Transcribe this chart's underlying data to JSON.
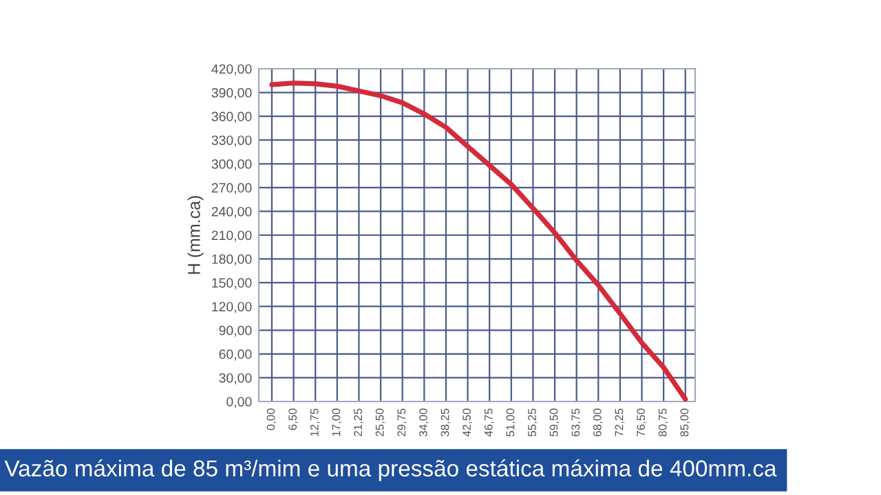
{
  "chart_data": {
    "type": "line",
    "ylabel": "H (mm.ca)",
    "categories": [
      "0,00",
      "6,50",
      "12,75",
      "17,00",
      "21,25",
      "25,50",
      "29,75",
      "34,00",
      "38,25",
      "42,50",
      "46,75",
      "51,00",
      "55,25",
      "59,50",
      "63,75",
      "68,00",
      "72,25",
      "76,50",
      "80,75",
      "85,00"
    ],
    "series": [
      {
        "color": "#d42b3a",
        "values": [
          400,
          402,
          401,
          398,
          392,
          386,
          377,
          363,
          346,
          322,
          298,
          274,
          244,
          213,
          178,
          147,
          111,
          74,
          43,
          3
        ]
      }
    ],
    "ylim": [
      0,
      420
    ],
    "yticks": [
      {
        "value": 0,
        "label": "0,00"
      },
      {
        "value": 30,
        "label": "30,00"
      },
      {
        "value": 60,
        "label": "60,00"
      },
      {
        "value": 90,
        "label": "90,00"
      },
      {
        "value": 120,
        "label": "120,00"
      },
      {
        "value": 150,
        "label": "150,00"
      },
      {
        "value": 180,
        "label": "180,00"
      },
      {
        "value": 210,
        "label": "210,00"
      },
      {
        "value": 240,
        "label": "240,00"
      },
      {
        "value": 270,
        "label": "270,00"
      },
      {
        "value": 300,
        "label": "300,00"
      },
      {
        "value": 330,
        "label": "330,00"
      },
      {
        "value": 360,
        "label": "360,00"
      },
      {
        "value": 390,
        "label": "390,00"
      },
      {
        "value": 420,
        "label": "420,00"
      }
    ],
    "grid": true,
    "marker": "none",
    "line_style": "solid",
    "annotations": [
      "Vazão máxima de 85 m³/mim e uma pressão estática máxima de 400mm.ca"
    ]
  }
}
